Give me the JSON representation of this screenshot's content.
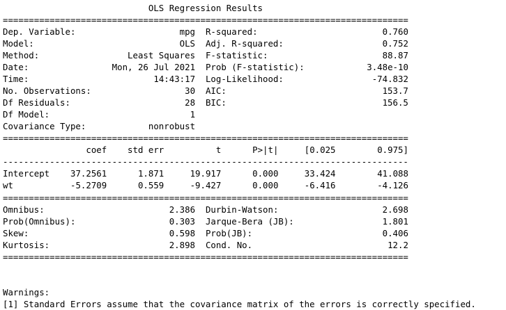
{
  "title": "OLS Regression Results",
  "rule_heavy": "==============================================================================",
  "rule_light": "------------------------------------------------------------------------------",
  "summary": {
    "left": [
      {
        "label": "Dep. Variable:",
        "value": "mpg"
      },
      {
        "label": "Model:",
        "value": "OLS"
      },
      {
        "label": "Method:",
        "value": "Least Squares"
      },
      {
        "label": "Date:",
        "value": "Mon, 26 Jul 2021"
      },
      {
        "label": "Time:",
        "value": "14:43:17"
      },
      {
        "label": "No. Observations:",
        "value": "30"
      },
      {
        "label": "Df Residuals:",
        "value": "28"
      },
      {
        "label": "Df Model:",
        "value": "1"
      },
      {
        "label": "Covariance Type:",
        "value": "nonrobust"
      }
    ],
    "right": [
      {
        "label": "R-squared:",
        "value": "0.760"
      },
      {
        "label": "Adj. R-squared:",
        "value": "0.752"
      },
      {
        "label": "F-statistic:",
        "value": "88.87"
      },
      {
        "label": "Prob (F-statistic):",
        "value": "3.48e-10"
      },
      {
        "label": "Log-Likelihood:",
        "value": "-74.832"
      },
      {
        "label": "AIC:",
        "value": "153.7"
      },
      {
        "label": "BIC:",
        "value": "156.5"
      }
    ]
  },
  "coef_table": {
    "headers": [
      "coef",
      "std err",
      "t",
      "P>|t|",
      "[0.025",
      "0.975]"
    ],
    "rows": [
      {
        "name": "Intercept",
        "values": [
          "37.2561",
          "1.871",
          "19.917",
          "0.000",
          "33.424",
          "41.088"
        ]
      },
      {
        "name": "wt",
        "values": [
          "-5.2709",
          "0.559",
          "-9.427",
          "0.000",
          "-6.416",
          "-4.126"
        ]
      }
    ]
  },
  "diagnostics": {
    "left": [
      {
        "label": "Omnibus:",
        "value": "2.386"
      },
      {
        "label": "Prob(Omnibus):",
        "value": "0.303"
      },
      {
        "label": "Skew:",
        "value": "0.598"
      },
      {
        "label": "Kurtosis:",
        "value": "2.898"
      }
    ],
    "right": [
      {
        "label": "Durbin-Watson:",
        "value": "2.698"
      },
      {
        "label": "Jarque-Bera (JB):",
        "value": "1.801"
      },
      {
        "label": "Prob(JB):",
        "value": "0.406"
      },
      {
        "label": "Cond. No.",
        "value": "12.2"
      }
    ]
  },
  "warnings": {
    "heading": "Warnings:",
    "items": [
      "[1] Standard Errors assume that the covariance matrix of the errors is correctly specified."
    ]
  }
}
